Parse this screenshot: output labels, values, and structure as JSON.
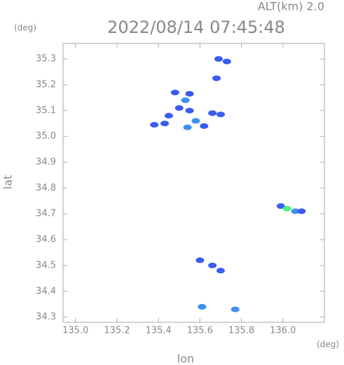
{
  "chart_data": {
    "type": "scatter",
    "title": "2022/08/14 07:45:48",
    "subtitle": "ALT(km) 2.0",
    "x_label": "lon",
    "y_label": "lat",
    "x_unit": "(deg)",
    "y_unit": "(deg)",
    "x": [
      135.69,
      135.73,
      135.68,
      135.48,
      135.55,
      135.53,
      135.5,
      135.45,
      135.55,
      135.58,
      135.54,
      135.43,
      135.38,
      135.62,
      135.66,
      135.7,
      135.99,
      136.02,
      136.06,
      136.09,
      135.6,
      135.66,
      135.7,
      135.61,
      135.77
    ],
    "y": [
      35.3,
      35.29,
      35.225,
      35.17,
      35.165,
      35.14,
      35.11,
      35.08,
      35.1,
      35.06,
      35.035,
      35.05,
      35.045,
      35.04,
      35.09,
      35.085,
      34.73,
      34.72,
      34.71,
      34.71,
      34.52,
      34.5,
      34.48,
      34.34,
      34.33
    ],
    "colors": [
      "#3a5cf0",
      "#3a5cf0",
      "#3a5cf0",
      "#3a5cf0",
      "#3a5cf0",
      "#3f8ff0",
      "#3a5cf0",
      "#3a5cf0",
      "#3a5cf0",
      "#3f8ff0",
      "#3f8ff0",
      "#3a5cf0",
      "#3a5cf0",
      "#3a5cf0",
      "#3a5cf0",
      "#3a5cf0",
      "#3a5cf0",
      "#4ef07a",
      "#3f8ff0",
      "#3a5cf0",
      "#3a5cf0",
      "#3a5cf0",
      "#3a5cf0",
      "#3f8ff0",
      "#3f8ff0"
    ],
    "xlim": [
      134.94,
      136.2
    ],
    "ylim": [
      34.28,
      35.36
    ],
    "xticks": [
      {
        "value": 135.0,
        "label": "135.0"
      },
      135.2,
      135.4,
      135.6,
      135.8,
      {
        "value": 136.0,
        "label": "136.0"
      }
    ],
    "yticks": [
      34.3,
      34.4,
      34.5,
      34.6,
      34.7,
      34.8,
      34.9,
      {
        "value": 35.0,
        "label": "35.0"
      },
      35.1,
      35.2,
      35.3
    ],
    "grid": false
  }
}
